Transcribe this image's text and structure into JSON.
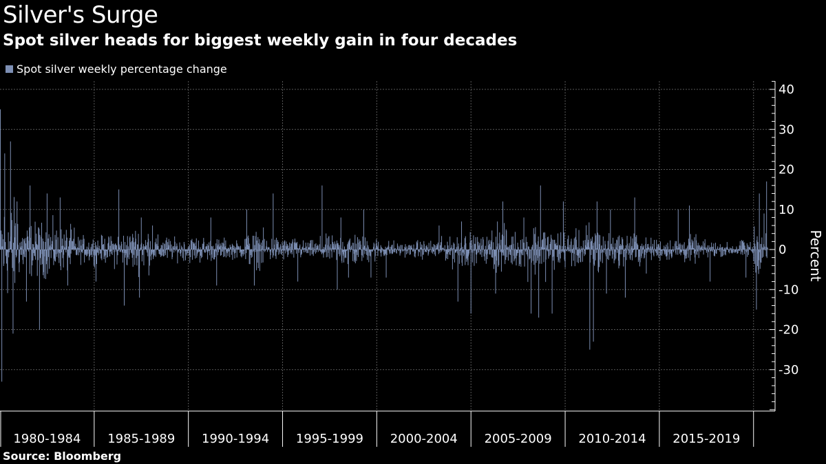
{
  "title": "Silver's Surge",
  "subtitle": "Spot silver heads for biggest weekly gain in four decades",
  "legend": {
    "label": "Spot silver weekly percentage change",
    "color": "#7d8fb4"
  },
  "source": "Source: Bloomberg",
  "chart_data": {
    "type": "bar",
    "series_name": "Spot silver weekly percentage change",
    "ylabel": "Percent",
    "ylim": [
      -40,
      42
    ],
    "yticks": [
      40,
      30,
      20,
      10,
      0,
      -10,
      -20,
      -30
    ],
    "xlim": [
      1980.0,
      2020.85
    ],
    "x_categories": [
      "1980-1984",
      "1985-1989",
      "1990-1994",
      "1995-1999",
      "2000-2004",
      "2005-2009",
      "2010-2014",
      "2015-2019"
    ],
    "grid": true,
    "bar_color": "#7d8fb4",
    "notable_points": [
      {
        "x": 1980.02,
        "y": 35
      },
      {
        "x": 1980.1,
        "y": -33
      },
      {
        "x": 1980.25,
        "y": 24
      },
      {
        "x": 1980.55,
        "y": 27
      },
      {
        "x": 1980.7,
        "y": -21
      },
      {
        "x": 1980.9,
        "y": 12
      },
      {
        "x": 1981.4,
        "y": -13
      },
      {
        "x": 1981.6,
        "y": 16
      },
      {
        "x": 1982.1,
        "y": -20
      },
      {
        "x": 1982.5,
        "y": 14
      },
      {
        "x": 1983.2,
        "y": 13
      },
      {
        "x": 1983.6,
        "y": -9
      },
      {
        "x": 1985.1,
        "y": -8
      },
      {
        "x": 1986.3,
        "y": 15
      },
      {
        "x": 1986.6,
        "y": -14
      },
      {
        "x": 1987.4,
        "y": -12
      },
      {
        "x": 1987.5,
        "y": 8
      },
      {
        "x": 1988.1,
        "y": 6
      },
      {
        "x": 1991.2,
        "y": 8
      },
      {
        "x": 1991.5,
        "y": -9
      },
      {
        "x": 1993.1,
        "y": 10
      },
      {
        "x": 1993.5,
        "y": -9
      },
      {
        "x": 1994.5,
        "y": 14
      },
      {
        "x": 1995.8,
        "y": -8
      },
      {
        "x": 1997.1,
        "y": 16
      },
      {
        "x": 1997.9,
        "y": -10
      },
      {
        "x": 1998.1,
        "y": 8
      },
      {
        "x": 1998.5,
        "y": -7
      },
      {
        "x": 1999.3,
        "y": 10
      },
      {
        "x": 1999.7,
        "y": -7
      },
      {
        "x": 2000.5,
        "y": -7
      },
      {
        "x": 2003.3,
        "y": 6
      },
      {
        "x": 2004.3,
        "y": -13
      },
      {
        "x": 2004.5,
        "y": 7
      },
      {
        "x": 2005.0,
        "y": -16
      },
      {
        "x": 2006.3,
        "y": -11
      },
      {
        "x": 2006.4,
        "y": 7
      },
      {
        "x": 2006.7,
        "y": 12
      },
      {
        "x": 2007.8,
        "y": 8
      },
      {
        "x": 2008.2,
        "y": -16
      },
      {
        "x": 2008.6,
        "y": -17
      },
      {
        "x": 2008.7,
        "y": 16
      },
      {
        "x": 2009.3,
        "y": -16
      },
      {
        "x": 2009.9,
        "y": 12
      },
      {
        "x": 2011.3,
        "y": -25
      },
      {
        "x": 2011.5,
        "y": -23
      },
      {
        "x": 2011.7,
        "y": 12
      },
      {
        "x": 2012.2,
        "y": -11
      },
      {
        "x": 2012.4,
        "y": 10
      },
      {
        "x": 2013.2,
        "y": -12
      },
      {
        "x": 2013.7,
        "y": 13
      },
      {
        "x": 2014.3,
        "y": -6
      },
      {
        "x": 2016.0,
        "y": 10
      },
      {
        "x": 2016.6,
        "y": 11
      },
      {
        "x": 2017.7,
        "y": -8
      },
      {
        "x": 2019.6,
        "y": -7
      },
      {
        "x": 2020.15,
        "y": -15
      },
      {
        "x": 2020.3,
        "y": 14
      },
      {
        "x": 2020.55,
        "y": 9
      },
      {
        "x": 2020.7,
        "y": 17
      }
    ],
    "volatility_by_year": [
      {
        "year": 1980,
        "amplitude": 11
      },
      {
        "year": 1981,
        "amplitude": 6
      },
      {
        "year": 1982,
        "amplitude": 6
      },
      {
        "year": 1983,
        "amplitude": 5
      },
      {
        "year": 1984,
        "amplitude": 3
      },
      {
        "year": 1985,
        "amplitude": 3
      },
      {
        "year": 1986,
        "amplitude": 4
      },
      {
        "year": 1987,
        "amplitude": 5
      },
      {
        "year": 1988,
        "amplitude": 3
      },
      {
        "year": 1989,
        "amplitude": 2.5
      },
      {
        "year": 1990,
        "amplitude": 3
      },
      {
        "year": 1991,
        "amplitude": 2.5
      },
      {
        "year": 1992,
        "amplitude": 2
      },
      {
        "year": 1993,
        "amplitude": 4
      },
      {
        "year": 1994,
        "amplitude": 3
      },
      {
        "year": 1995,
        "amplitude": 2.5
      },
      {
        "year": 1996,
        "amplitude": 2
      },
      {
        "year": 1997,
        "amplitude": 3
      },
      {
        "year": 1998,
        "amplitude": 4
      },
      {
        "year": 1999,
        "amplitude": 3
      },
      {
        "year": 2000,
        "amplitude": 2
      },
      {
        "year": 2001,
        "amplitude": 1.5
      },
      {
        "year": 2002,
        "amplitude": 2
      },
      {
        "year": 2003,
        "amplitude": 2.5
      },
      {
        "year": 2004,
        "amplitude": 4
      },
      {
        "year": 2005,
        "amplitude": 3
      },
      {
        "year": 2006,
        "amplitude": 5
      },
      {
        "year": 2007,
        "amplitude": 4
      },
      {
        "year": 2008,
        "amplitude": 6
      },
      {
        "year": 2009,
        "amplitude": 4.5
      },
      {
        "year": 2010,
        "amplitude": 4
      },
      {
        "year": 2011,
        "amplitude": 6
      },
      {
        "year": 2012,
        "amplitude": 3.5
      },
      {
        "year": 2013,
        "amplitude": 4
      },
      {
        "year": 2014,
        "amplitude": 2.5
      },
      {
        "year": 2015,
        "amplitude": 2.5
      },
      {
        "year": 2016,
        "amplitude": 3
      },
      {
        "year": 2017,
        "amplitude": 2
      },
      {
        "year": 2018,
        "amplitude": 1.5
      },
      {
        "year": 2019,
        "amplitude": 2
      },
      {
        "year": 2020,
        "amplitude": 5
      }
    ],
    "weeks_per_year": 52,
    "last_x": 2020.75
  }
}
